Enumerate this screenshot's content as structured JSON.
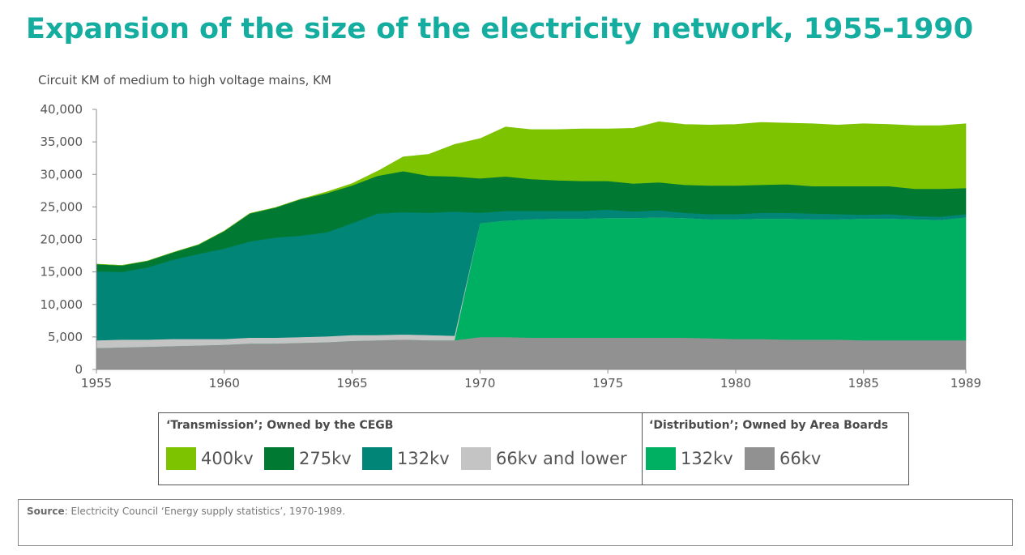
{
  "title": "Expansion of the size of the electricity network, 1955-1990",
  "legend": {
    "transmission_title": "‘Transmission’; Owned by the CEGB",
    "distribution_title": "‘Distribution’; Owned by Area Boards"
  },
  "source": {
    "label": "Source",
    "text": ": Electricity Council ‘Energy supply statistics’, 1970-1989."
  },
  "chart_data": {
    "type": "area",
    "stacked": true,
    "ylabel": "Circuit KM of medium to high voltage mains, KM",
    "xlabel": "",
    "xlim": [
      1955,
      1989
    ],
    "ylim": [
      0,
      40000
    ],
    "x_ticks": [
      1955,
      1960,
      1965,
      1970,
      1975,
      1980,
      1985,
      1989
    ],
    "x_tick_labels": [
      "1955",
      "1960",
      "1965",
      "1970",
      "1975",
      "1980",
      "1985",
      "1989"
    ],
    "y_ticks": [
      0,
      5000,
      10000,
      15000,
      20000,
      25000,
      30000,
      35000,
      40000
    ],
    "y_tick_labels": [
      "0",
      "5,000",
      "10,000",
      "15,000",
      "20,000",
      "25,000",
      "30,000",
      "35,000",
      "40,000"
    ],
    "x": [
      1955,
      1956,
      1957,
      1958,
      1959,
      1960,
      1961,
      1962,
      1963,
      1964,
      1965,
      1966,
      1967,
      1968,
      1969,
      1970,
      1971,
      1972,
      1973,
      1974,
      1975,
      1976,
      1977,
      1978,
      1979,
      1980,
      1981,
      1982,
      1983,
      1984,
      1985,
      1986,
      1987,
      1988,
      1989
    ],
    "legend_position": "bottom",
    "series": [
      {
        "name": "66kv",
        "group": "distribution",
        "color": "#919191",
        "values": [
          3300,
          3400,
          3500,
          3600,
          3700,
          3800,
          4000,
          4000,
          4100,
          4200,
          4400,
          4500,
          4600,
          4500,
          4500,
          5000,
          5000,
          4900,
          4900,
          4900,
          4900,
          4900,
          4900,
          4900,
          4800,
          4700,
          4700,
          4600,
          4600,
          4600,
          4500,
          4500,
          4500,
          4500,
          4500
        ]
      },
      {
        "name": "132kv",
        "group": "distribution",
        "color": "#00b062",
        "values": [
          0,
          0,
          0,
          0,
          0,
          0,
          0,
          0,
          0,
          0,
          0,
          0,
          0,
          0,
          0,
          17500,
          17900,
          18200,
          18300,
          18300,
          18400,
          18400,
          18500,
          18400,
          18300,
          18400,
          18500,
          18600,
          18500,
          18500,
          18700,
          18700,
          18600,
          18500,
          18900
        ]
      },
      {
        "name": "66kv and lower",
        "group": "transmission",
        "color": "#c4c4c4",
        "values": [
          1200,
          1200,
          1100,
          1100,
          1000,
          900,
          900,
          900,
          900,
          900,
          900,
          800,
          800,
          800,
          700,
          0,
          0,
          0,
          0,
          0,
          0,
          0,
          0,
          0,
          0,
          0,
          0,
          0,
          0,
          0,
          0,
          0,
          0,
          0,
          0
        ]
      },
      {
        "name": "132kv",
        "group": "transmission",
        "color": "#008577",
        "values": [
          10600,
          10400,
          11100,
          12200,
          13100,
          13900,
          14800,
          15400,
          15600,
          16000,
          17200,
          18700,
          18800,
          18800,
          19100,
          1600,
          1500,
          1300,
          1200,
          1200,
          1300,
          1000,
          1100,
          800,
          800,
          800,
          900,
          900,
          900,
          800,
          600,
          700,
          500,
          500,
          500
        ]
      },
      {
        "name": "275kv",
        "group": "transmission",
        "color": "#007a33",
        "values": [
          1100,
          1000,
          1000,
          1100,
          1400,
          2700,
          4300,
          4600,
          5600,
          6000,
          5800,
          5800,
          6300,
          5700,
          5400,
          5300,
          5300,
          4900,
          4700,
          4600,
          4400,
          4300,
          4300,
          4300,
          4400,
          4400,
          4300,
          4400,
          4200,
          4300,
          4400,
          4300,
          4200,
          4300,
          4000
        ]
      },
      {
        "name": "400kv",
        "group": "transmission",
        "color": "#7dc300",
        "values": [
          0,
          0,
          0,
          0,
          0,
          0,
          0,
          0,
          0,
          200,
          300,
          700,
          2200,
          3300,
          4900,
          6100,
          7600,
          7600,
          7800,
          8000,
          8000,
          8500,
          9300,
          9300,
          9300,
          9400,
          9600,
          9400,
          9600,
          9400,
          9600,
          9500,
          9700,
          9700,
          9900
        ]
      }
    ]
  }
}
